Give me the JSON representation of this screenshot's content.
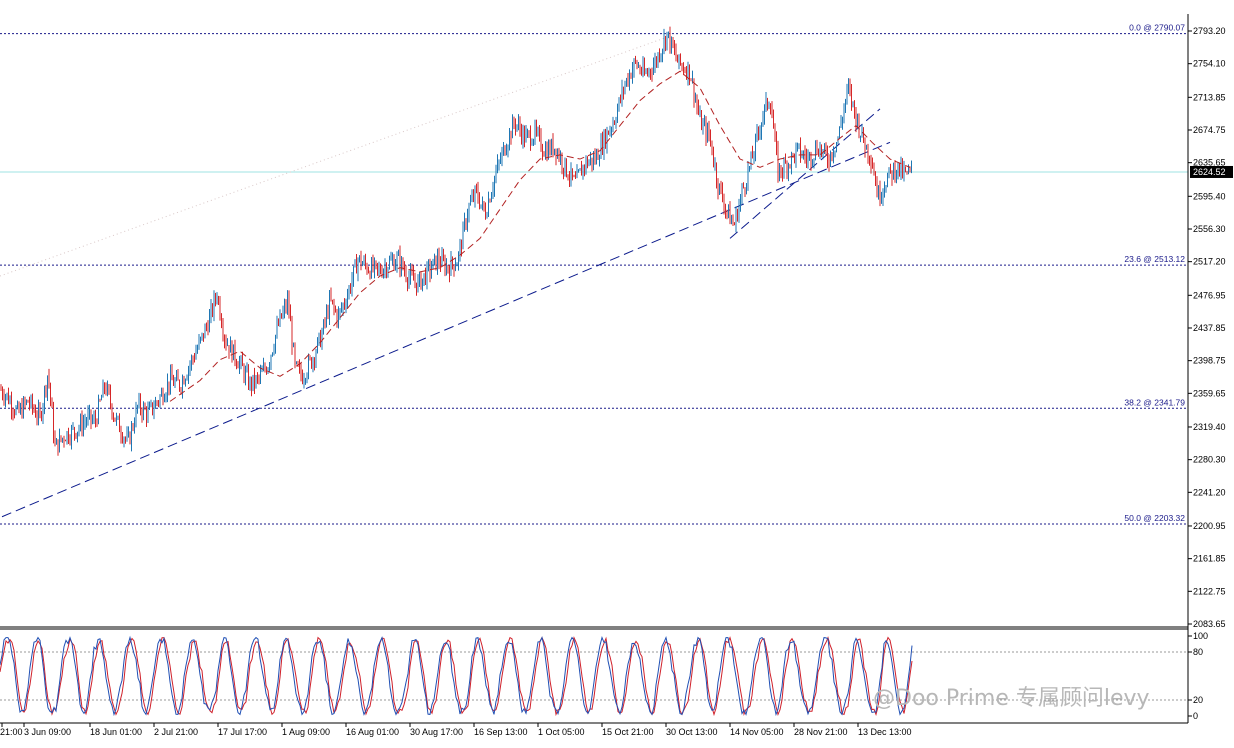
{
  "instrument": {
    "current_price": "2624.52"
  },
  "colors": {
    "up": "#1f77b4",
    "down": "#d62728",
    "trendline": "#0b1a8c",
    "ma": "#b22222",
    "fib": "#1a1a8a",
    "current_line": "#9fe3e3",
    "stoch_main": "#1f4fb4",
    "stoch_signal": "#d0202a",
    "axis": "#000000"
  },
  "chart_data": [
    {
      "type": "line",
      "subtype": "candlestick",
      "ylim": [
        2083.65,
        2793.2
      ],
      "y_ticks": [
        "2793.20",
        "2754.10",
        "2713.85",
        "2674.75",
        "2635.65",
        "2595.40",
        "2556.30",
        "2517.20",
        "2476.95",
        "2437.85",
        "2398.75",
        "2359.65",
        "2319.40",
        "2280.30",
        "2241.20",
        "2200.95",
        "2161.85",
        "2122.75",
        "2083.65"
      ],
      "x_ticks": [
        "21:00",
        "3 Jun 09:00",
        "18 Jun 01:00",
        "2 Jul 21:00",
        "17 Jul 17:00",
        "1 Aug 09:00",
        "16 Aug 01:00",
        "30 Aug 17:00",
        "16 Sep 13:00",
        "1 Oct 05:00",
        "15 Oct 21:00",
        "30 Oct 13:00",
        "14 Nov 05:00",
        "28 Nov 21:00",
        "13 Dec 13:00"
      ],
      "price_path": [
        [
          0,
          2365
        ],
        [
          8,
          2355
        ],
        [
          18,
          2335
        ],
        [
          28,
          2350
        ],
        [
          40,
          2330
        ],
        [
          48,
          2385
        ],
        [
          55,
          2295
        ],
        [
          65,
          2310
        ],
        [
          75,
          2315
        ],
        [
          88,
          2330
        ],
        [
          95,
          2325
        ],
        [
          105,
          2370
        ],
        [
          115,
          2330
        ],
        [
          128,
          2300
        ],
        [
          138,
          2345
        ],
        [
          148,
          2335
        ],
        [
          160,
          2355
        ],
        [
          170,
          2375
        ],
        [
          180,
          2370
        ],
        [
          190,
          2395
        ],
        [
          200,
          2420
        ],
        [
          210,
          2450
        ],
        [
          217,
          2480
        ],
        [
          225,
          2425
        ],
        [
          232,
          2410
        ],
        [
          240,
          2395
        ],
        [
          250,
          2370
        ],
        [
          258,
          2375
        ],
        [
          268,
          2395
        ],
        [
          278,
          2440
        ],
        [
          288,
          2470
        ],
        [
          295,
          2390
        ],
        [
          302,
          2380
        ],
        [
          312,
          2400
        ],
        [
          322,
          2430
        ],
        [
          330,
          2470
        ],
        [
          338,
          2450
        ],
        [
          348,
          2480
        ],
        [
          358,
          2520
        ],
        [
          368,
          2510
        ],
        [
          378,
          2505
        ],
        [
          388,
          2515
        ],
        [
          398,
          2520
        ],
        [
          408,
          2500
        ],
        [
          418,
          2490
        ],
        [
          428,
          2505
        ],
        [
          438,
          2520
        ],
        [
          448,
          2510
        ],
        [
          458,
          2520
        ],
        [
          468,
          2580
        ],
        [
          476,
          2600
        ],
        [
          485,
          2575
        ],
        [
          495,
          2620
        ],
        [
          505,
          2655
        ],
        [
          515,
          2685
        ],
        [
          525,
          2665
        ],
        [
          535,
          2670
        ],
        [
          545,
          2650
        ],
        [
          555,
          2655
        ],
        [
          565,
          2630
        ],
        [
          575,
          2610
        ],
        [
          585,
          2635
        ],
        [
          595,
          2640
        ],
        [
          605,
          2665
        ],
        [
          615,
          2690
        ],
        [
          625,
          2730
        ],
        [
          635,
          2755
        ],
        [
          645,
          2740
        ],
        [
          655,
          2755
        ],
        [
          667,
          2790
        ],
        [
          678,
          2755
        ],
        [
          690,
          2745
        ],
        [
          700,
          2685
        ],
        [
          710,
          2665
        ],
        [
          718,
          2610
        ],
        [
          726,
          2580
        ],
        [
          734,
          2560
        ],
        [
          742,
          2600
        ],
        [
          752,
          2640
        ],
        [
          762,
          2690
        ],
        [
          770,
          2715
        ],
        [
          778,
          2625
        ],
        [
          788,
          2635
        ],
        [
          798,
          2650
        ],
        [
          808,
          2640
        ],
        [
          818,
          2655
        ],
        [
          828,
          2640
        ],
        [
          838,
          2665
        ],
        [
          848,
          2725
        ],
        [
          856,
          2690
        ],
        [
          864,
          2660
        ],
        [
          872,
          2640
        ],
        [
          878,
          2595
        ],
        [
          886,
          2615
        ],
        [
          896,
          2630
        ],
        [
          906,
          2620
        ],
        [
          912,
          2624.52
        ]
      ],
      "moving_average": [
        [
          170,
          2350
        ],
        [
          200,
          2375
        ],
        [
          220,
          2400
        ],
        [
          240,
          2410
        ],
        [
          260,
          2390
        ],
        [
          280,
          2380
        ],
        [
          300,
          2395
        ],
        [
          320,
          2420
        ],
        [
          340,
          2450
        ],
        [
          360,
          2480
        ],
        [
          380,
          2500
        ],
        [
          400,
          2510
        ],
        [
          420,
          2505
        ],
        [
          440,
          2510
        ],
        [
          460,
          2525
        ],
        [
          480,
          2545
        ],
        [
          500,
          2580
        ],
        [
          520,
          2615
        ],
        [
          540,
          2640
        ],
        [
          560,
          2645
        ],
        [
          580,
          2640
        ],
        [
          600,
          2650
        ],
        [
          620,
          2680
        ],
        [
          640,
          2710
        ],
        [
          660,
          2730
        ],
        [
          680,
          2745
        ],
        [
          700,
          2725
        ],
        [
          720,
          2680
        ],
        [
          740,
          2640
        ],
        [
          760,
          2630
        ],
        [
          780,
          2640
        ],
        [
          800,
          2645
        ],
        [
          820,
          2645
        ],
        [
          840,
          2665
        ],
        [
          856,
          2680
        ],
        [
          872,
          2660
        ],
        [
          890,
          2640
        ],
        [
          910,
          2630
        ]
      ],
      "trendlines": [
        {
          "from": [
            2,
            2212
          ],
          "to": [
            890,
            2660
          ]
        },
        {
          "from": [
            730,
            2545
          ],
          "to": [
            880,
            2700
          ]
        },
        {
          "from": [
            0,
            2500
          ],
          "to": [
            665,
            2785
          ],
          "style": "dotted-light"
        }
      ],
      "fibonacci_levels": [
        {
          "label": "0.0 @ 2790.07",
          "value": 2790.07
        },
        {
          "label": "23.6 @ 2513.12",
          "value": 2513.12
        },
        {
          "label": "38.2 @ 2341.79",
          "value": 2341.79
        },
        {
          "label": "50.0 @ 2203.32",
          "value": 2203.32
        }
      ],
      "current_price_line": 2624.52
    },
    {
      "type": "line",
      "name": "stochastic",
      "ylim": [
        0,
        100
      ],
      "y_ticks": [
        "100",
        "80",
        "20",
        "0"
      ],
      "levels": [
        80,
        20
      ]
    }
  ],
  "watermark": "@Doo Prime 专属顾问levy"
}
